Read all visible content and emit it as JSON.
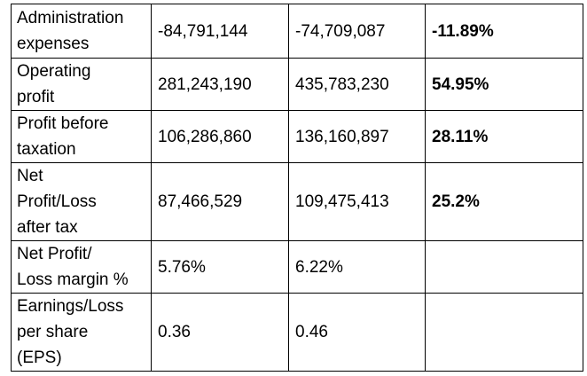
{
  "rows": [
    {
      "label_lines": [
        "Administration",
        "expenses"
      ],
      "col1": "-84,791,144",
      "col2": "-74,709,087",
      "change": "-11.89%"
    },
    {
      "label_lines": [
        "Operating",
        "profit"
      ],
      "col1": "281,243,190",
      "col2": "435,783,230",
      "change": "54.95%"
    },
    {
      "label_lines": [
        "Profit before",
        "taxation"
      ],
      "col1": "106,286,860",
      "col2": "136,160,897",
      "change": "28.11%"
    },
    {
      "label_lines": [
        "Net",
        "Profit/Loss",
        "after tax"
      ],
      "col1": "87,466,529",
      "col2": "109,475,413",
      "change": "25.2%"
    },
    {
      "label_lines": [
        "Net Profit/",
        "Loss margin %"
      ],
      "col1": "5.76%",
      "col2": "6.22%",
      "change": ""
    },
    {
      "label_lines": [
        "Earnings/Loss",
        "per share",
        "(EPS)"
      ],
      "col1": "0.36",
      "col2": "0.46",
      "change": ""
    }
  ]
}
